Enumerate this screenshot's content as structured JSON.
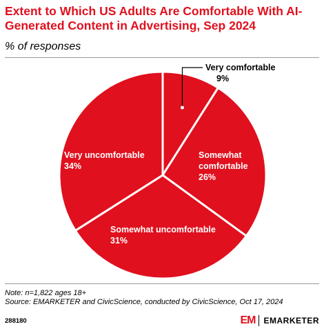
{
  "header": {
    "title": "Extent to Which US Adults Are Comfortable With AI-Generated Content in Advertising, Sep 2024",
    "subtitle": "% of responses"
  },
  "footer": {
    "note": "Note: n=1,822 ages 18+",
    "source": "Source: EMARKETER and CivicScience, conducted by CivicScience, Oct 17, 2024",
    "chart_id": "288180",
    "brand_mark": "EM",
    "brand_name": "EMARKETER"
  },
  "colors": {
    "slice": "#e0101e",
    "divider": "#ffffff",
    "title": "#e0101e"
  },
  "chart_data": {
    "type": "pie",
    "title": "Extent to Which US Adults Are Comfortable With AI-Generated Content in Advertising, Sep 2024",
    "subtitle": "% of responses",
    "unit": "%",
    "slices": [
      {
        "label": "Very comfortable",
        "value": 9
      },
      {
        "label": "Somewhat comfortable",
        "value": 26
      },
      {
        "label": "Somewhat uncomfortable",
        "value": 31
      },
      {
        "label": "Very uncomfortable",
        "value": 34
      }
    ]
  }
}
